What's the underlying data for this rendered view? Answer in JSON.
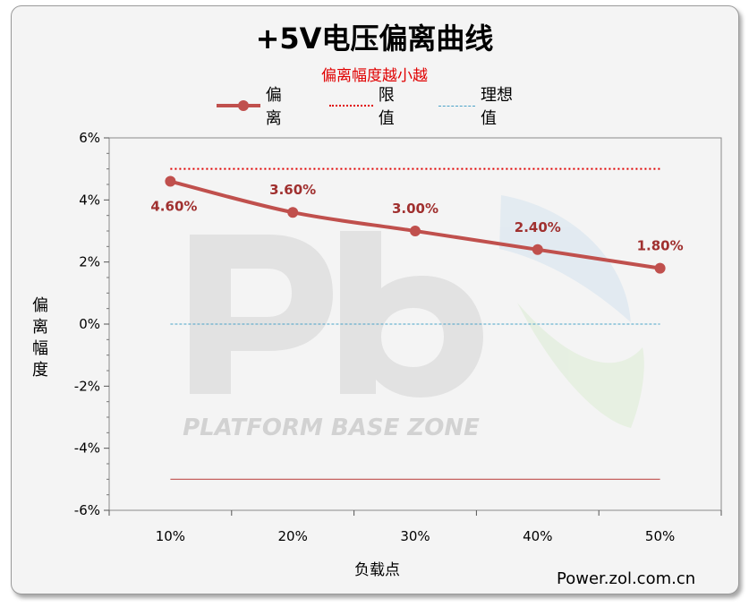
{
  "chart_data": {
    "type": "line",
    "title": "+5V电压偏离曲线",
    "subtitle": "偏离幅度越小越",
    "xlabel": "负载点",
    "ylabel": "偏离幅度",
    "categories": [
      "10%",
      "20%",
      "30%",
      "40%",
      "50%"
    ],
    "series": [
      {
        "name": "偏离",
        "values": [
          4.6,
          3.6,
          3.0,
          2.4,
          1.8
        ],
        "labels": [
          "4.60%",
          "3.60%",
          "3.00%",
          "2.40%",
          "1.80%"
        ],
        "color": "#c0504d",
        "style": "solid-marker"
      },
      {
        "name": "限值",
        "values": [
          5,
          5,
          5,
          5,
          5
        ],
        "color": "#e00000",
        "style": "dotted"
      },
      {
        "name": "理想值",
        "values": [
          0,
          0,
          0,
          0,
          0
        ],
        "color": "#4aa3c8",
        "style": "dashed"
      }
    ],
    "lower_limit": {
      "value": -5,
      "color": "#c0504d"
    },
    "ylim": [
      -6,
      6
    ],
    "yticks": [
      "6%",
      "4%",
      "2%",
      "0%",
      "-2%",
      "-4%",
      "-6%"
    ],
    "grid": false,
    "legend_position": "top"
  },
  "watermark": {
    "text": "PLATFORM BASE ZONE"
  },
  "credit": "Power.zol.com.cn"
}
